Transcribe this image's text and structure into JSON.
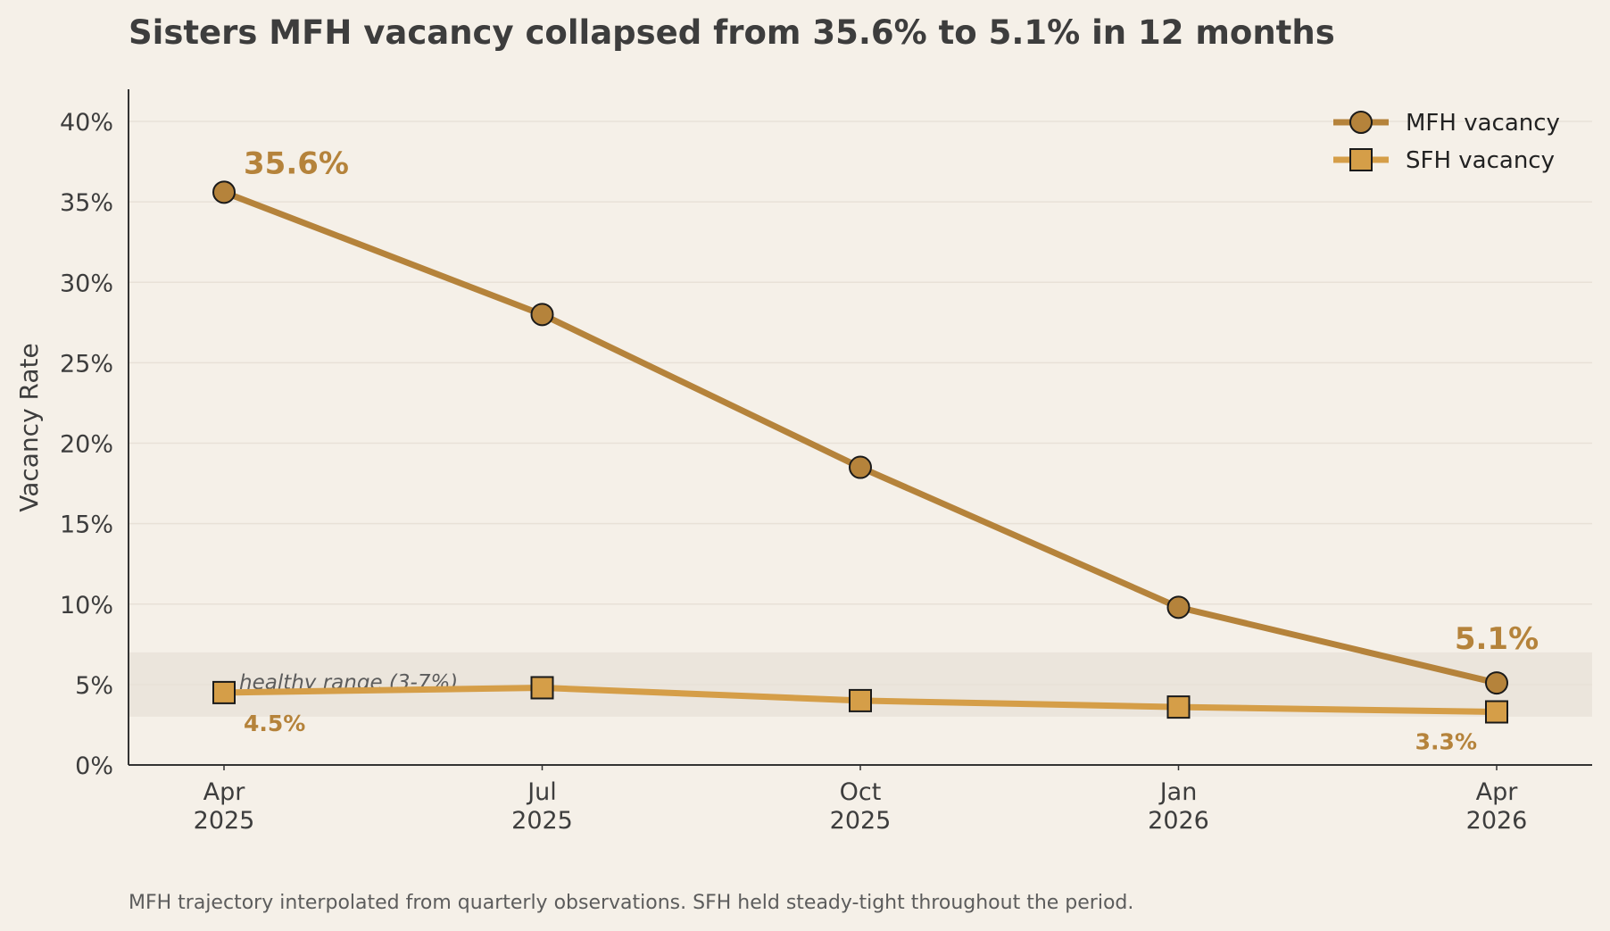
{
  "title": "Sisters MFH vacancy collapsed from 35.6% to 5.1% in 12 months",
  "note": "MFH trajectory interpolated from quarterly observations. SFH held steady-tight throughout the period.",
  "colors": {
    "background": "#f5f0e8",
    "mfh": "#b5833b",
    "sfh": "#d59e48",
    "band": "#ebe5dc",
    "grid": "#e8e1d7",
    "axis": "#333333"
  },
  "chart_data": {
    "type": "line",
    "categories": [
      "Apr\n2025",
      "Jul\n2025",
      "Oct\n2025",
      "Jan\n2026",
      "Apr\n2026"
    ],
    "ylabel": "Vacancy Rate",
    "ylim": [
      0,
      42
    ],
    "yticks": [
      0,
      5,
      10,
      15,
      20,
      25,
      30,
      35,
      40
    ],
    "ytick_labels": [
      "0%",
      "5%",
      "10%",
      "15%",
      "20%",
      "25%",
      "30%",
      "35%",
      "40%"
    ],
    "grid": "horizontal",
    "legend": "top-right",
    "series": [
      {
        "name": "MFH vacancy",
        "marker": "circle",
        "color": "#b5833b",
        "values": [
          35.6,
          28.0,
          18.5,
          9.8,
          5.1
        ]
      },
      {
        "name": "SFH vacancy",
        "marker": "square",
        "color": "#d59e48",
        "values": [
          4.5,
          4.8,
          4.0,
          3.6,
          3.3
        ]
      }
    ],
    "band": {
      "from": 3,
      "to": 7,
      "label": "healthy range (3-7%)"
    },
    "annotations": [
      {
        "text": "35.6%",
        "series": 0,
        "index": 0,
        "style": "big"
      },
      {
        "text": "5.1%",
        "series": 0,
        "index": 4,
        "style": "big"
      },
      {
        "text": "4.5%",
        "series": 1,
        "index": 0,
        "style": "small"
      },
      {
        "text": "3.3%",
        "series": 1,
        "index": 4,
        "style": "small"
      }
    ]
  }
}
